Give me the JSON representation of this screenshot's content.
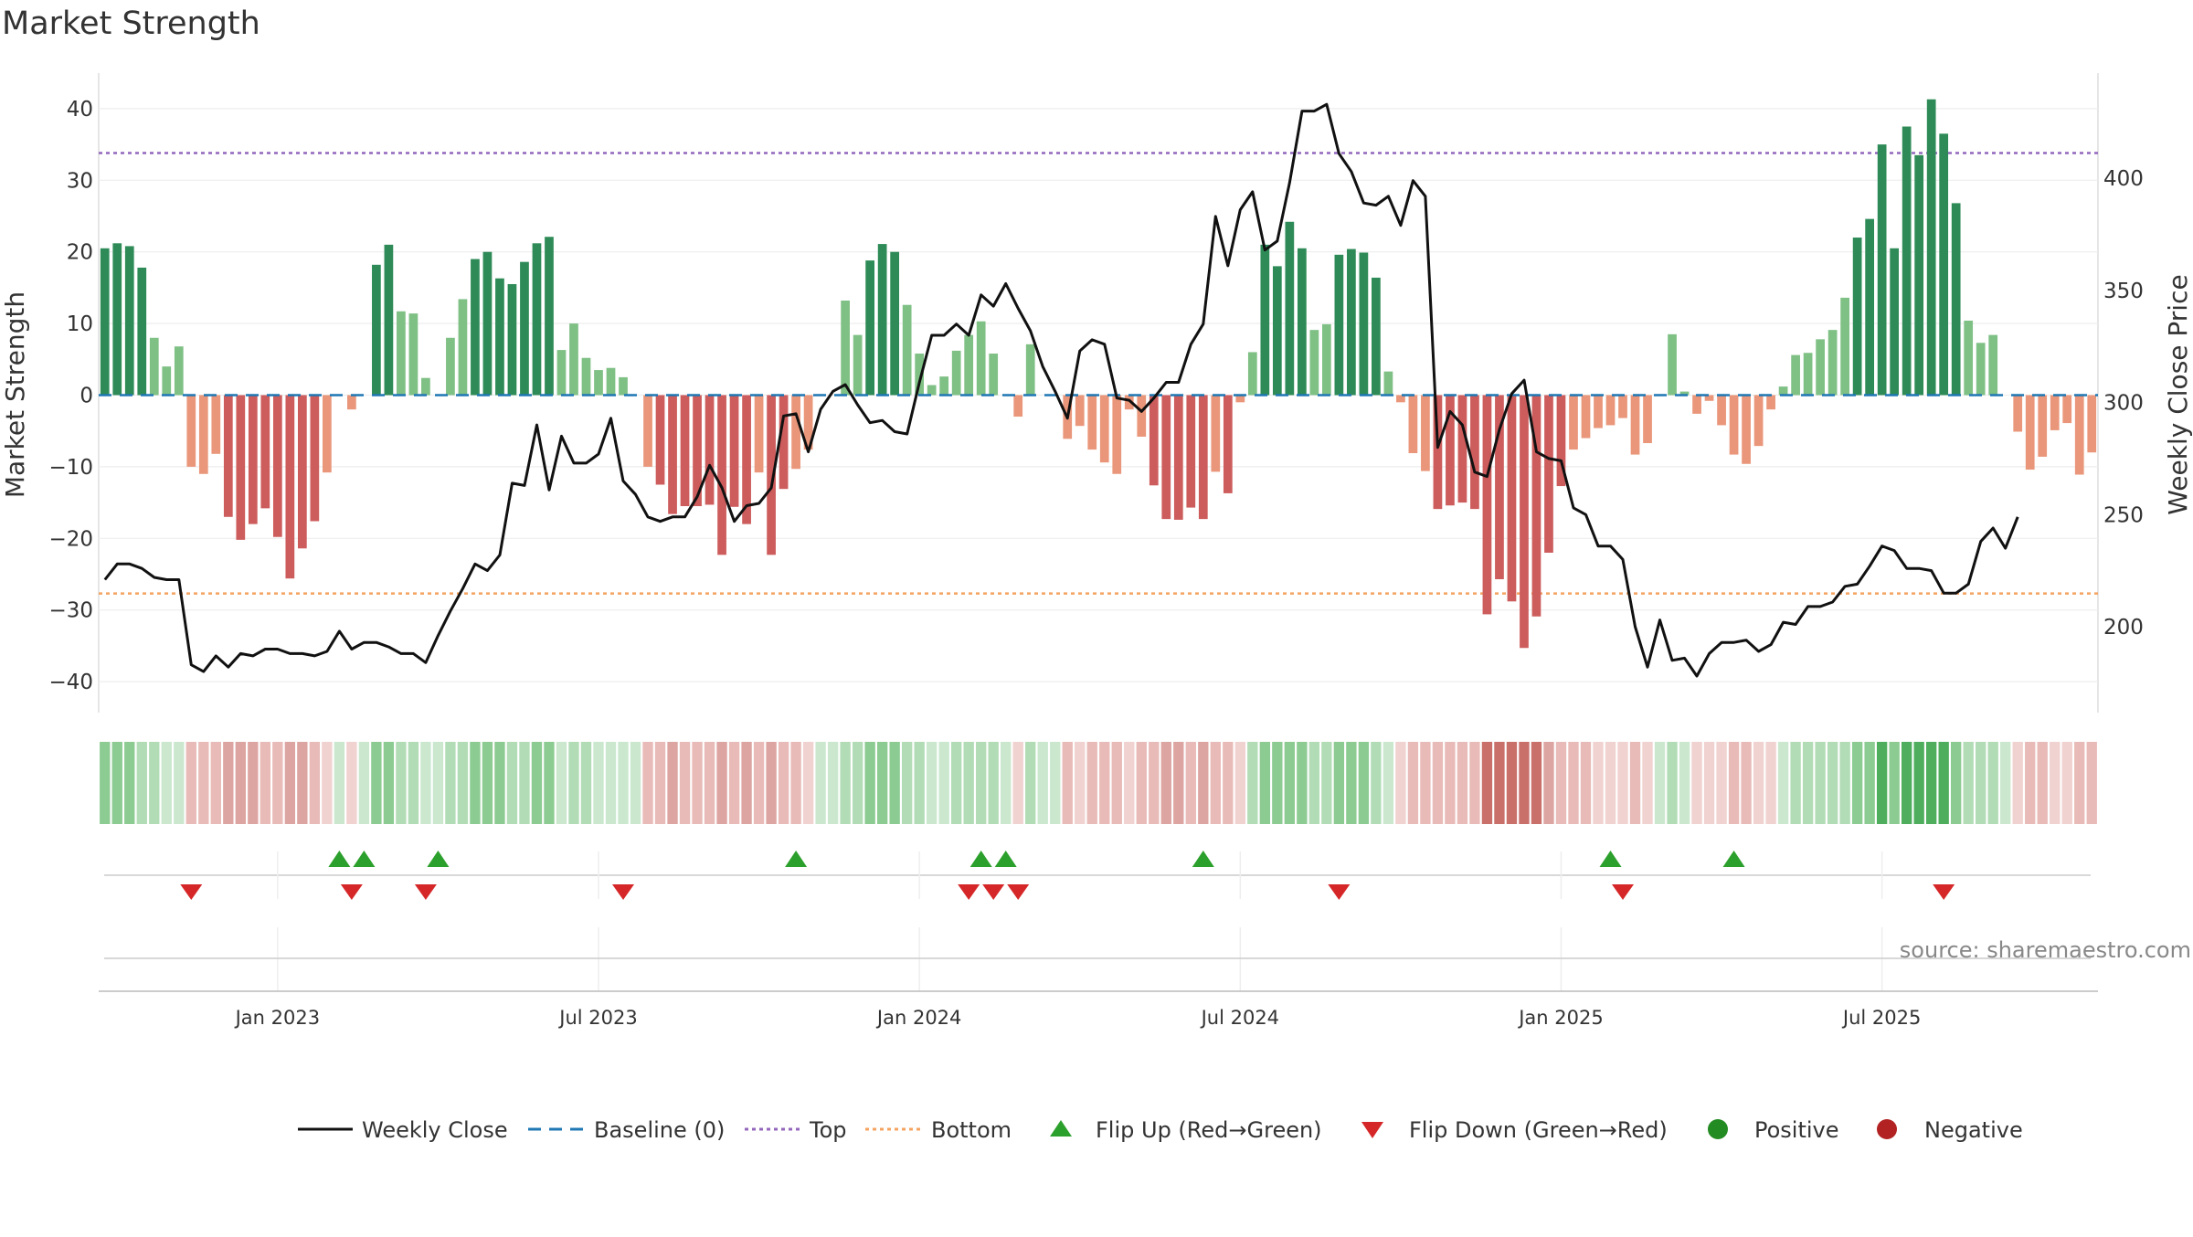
{
  "title": "Market Strength",
  "source": "source: sharemaestro.com",
  "colors": {
    "strong_green": "#2e8b57",
    "light_green": "#7fc085",
    "strong_red": "#cd5c5c",
    "light_red": "#e9967a",
    "line": "#111111",
    "baseline": "#1f77b4",
    "top": "#9467bd",
    "bottom": "#f4a460",
    "flip_up": "#2ca02c",
    "flip_down": "#d62728",
    "positive": "#228b22",
    "negative": "#b22222"
  },
  "chart_data": {
    "type": "bar",
    "ylabel": "Market Strength",
    "y2label": "Weekly Close Price",
    "ylim": [
      -44,
      44
    ],
    "y2lim": [
      164,
      440
    ],
    "yticks": [
      "40",
      "30",
      "20",
      "10",
      "0",
      "−10",
      "−20",
      "−30",
      "−40"
    ],
    "y2ticks": [
      "400",
      "350",
      "300",
      "250",
      "200"
    ],
    "xticks": [
      "Jan 2023",
      "Jul 2023",
      "Jan 2024",
      "Jul 2024",
      "Jan 2025",
      "Jul 2025"
    ],
    "xtick_weeks": [
      14,
      40,
      66,
      92,
      118,
      144
    ],
    "top_level": 33.8,
    "bottom_level": -27.7,
    "legend": [
      "Weekly Close",
      "Baseline (0)",
      "Top",
      "Bottom",
      "Flip Up (Red→Green)",
      "Flip Down (Green→Red)",
      "Positive",
      "Negative"
    ],
    "strength": [
      20.5,
      21.2,
      20.8,
      17.8,
      8.0,
      4.0,
      6.8,
      -10.0,
      -11.0,
      -8.2,
      -17.0,
      -20.2,
      -18.0,
      -15.8,
      -19.8,
      -25.6,
      -21.4,
      -17.6,
      -10.8,
      0.0,
      -2.0,
      0.0,
      18.2,
      21.0,
      11.7,
      11.4,
      2.4,
      0.0,
      8.0,
      13.4,
      19.0,
      20.0,
      16.3,
      15.5,
      18.6,
      21.2,
      22.1,
      6.3,
      10.0,
      5.2,
      3.5,
      3.8,
      2.5,
      0.0,
      -10.0,
      -12.5,
      -16.6,
      -15.5,
      -15.5,
      -15.3,
      -22.3,
      -15.6,
      -18.0,
      -10.8,
      -22.3,
      -13.1,
      -10.3,
      -7.6,
      0.0,
      0.0,
      13.2,
      8.4,
      18.8,
      21.1,
      20.0,
      12.6,
      5.8,
      1.4,
      2.6,
      6.2,
      8.4,
      10.3,
      5.8,
      0.0,
      -3.0,
      7.1,
      0.0,
      0.0,
      -6.1,
      -4.3,
      -7.6,
      -9.4,
      -11.0,
      -2.0,
      -5.8,
      -12.6,
      -17.3,
      -17.4,
      -15.7,
      -17.3,
      -10.7,
      -13.7,
      -1.0,
      6.0,
      21.0,
      18.0,
      24.2,
      20.5,
      9.1,
      9.9,
      19.6,
      20.4,
      19.9,
      16.4,
      3.3,
      -1.0,
      -8.1,
      -10.6,
      -15.9,
      -15.4,
      -15.0,
      -15.9,
      -30.6,
      -25.7,
      -28.8,
      -35.3,
      -30.9,
      -22.0,
      -12.7,
      -7.6,
      -6.0,
      -4.6,
      -4.2,
      -3.2,
      -8.3,
      -6.7,
      0.0,
      8.5,
      0.5,
      -2.6,
      -0.8,
      -4.2,
      -8.3,
      -9.6,
      -7.1,
      -2.0,
      1.2,
      5.6,
      5.9,
      7.8,
      9.1,
      13.6,
      22.0,
      24.6,
      35.0,
      20.5,
      37.5,
      33.5,
      41.3,
      36.5,
      26.8,
      10.4,
      7.3,
      8.4,
      0.0,
      -5.1,
      -10.4,
      -8.6,
      -4.9,
      -3.9,
      -11.1,
      -8.0
    ],
    "weekly_close": [
      221,
      228,
      228,
      226,
      222,
      221,
      221,
      183,
      180,
      187,
      182,
      188,
      187,
      190,
      190,
      188,
      188,
      187,
      189,
      198,
      190,
      193,
      193,
      191,
      188,
      188,
      184,
      196,
      207,
      217,
      228,
      225,
      232,
      264,
      263,
      290,
      261,
      285,
      273,
      273,
      277,
      293,
      265,
      259,
      249,
      247,
      249,
      249,
      258,
      272,
      262,
      247,
      254,
      255,
      262,
      294,
      295,
      278,
      297,
      305,
      308,
      299,
      291,
      292,
      287,
      286,
      309,
      330,
      330,
      335,
      330,
      348,
      343,
      353,
      342,
      332,
      316,
      305,
      293,
      323,
      328,
      326,
      302,
      301,
      296,
      302,
      309,
      309,
      326,
      335,
      383,
      361,
      386,
      394,
      368,
      372,
      398,
      430,
      430,
      433,
      411,
      403,
      389,
      388,
      392,
      379,
      399,
      392,
      280,
      296,
      290,
      269,
      267,
      288,
      304,
      310,
      278,
      275,
      274,
      253,
      250,
      236,
      236,
      230,
      200,
      182,
      203,
      185,
      186,
      178,
      188,
      193,
      193,
      194,
      189,
      192,
      202,
      201,
      209,
      209,
      211,
      218,
      219,
      227,
      236,
      234,
      226,
      226,
      225,
      215,
      215,
      219,
      238,
      244,
      235,
      249
    ],
    "heat_levels": [
      2,
      2,
      2,
      1,
      1,
      0,
      0,
      1,
      1,
      1,
      2,
      2,
      2,
      1,
      1,
      2,
      2,
      1,
      0,
      0,
      0,
      0,
      2,
      2,
      1,
      1,
      0,
      0,
      1,
      1,
      2,
      2,
      2,
      1,
      1,
      2,
      2,
      0,
      1,
      1,
      0,
      0,
      0,
      0,
      1,
      1,
      2,
      1,
      1,
      1,
      2,
      1,
      2,
      1,
      2,
      1,
      1,
      0,
      0,
      0,
      1,
      1,
      2,
      2,
      2,
      1,
      1,
      0,
      0,
      1,
      1,
      1,
      1,
      0,
      0,
      1,
      0,
      0,
      1,
      0,
      1,
      1,
      1,
      0,
      1,
      1,
      2,
      2,
      1,
      2,
      1,
      1,
      0,
      1,
      2,
      2,
      2,
      2,
      1,
      1,
      2,
      2,
      2,
      1,
      0,
      0,
      1,
      1,
      1,
      1,
      1,
      1,
      3,
      3,
      3,
      3,
      3,
      2,
      1,
      1,
      1,
      0,
      0,
      0,
      1,
      0,
      0,
      1,
      0,
      0,
      0,
      0,
      1,
      1,
      0,
      0,
      0,
      1,
      1,
      1,
      1,
      1,
      2,
      2,
      3,
      2,
      3,
      3,
      3,
      3,
      2,
      1,
      1,
      1,
      0,
      0,
      1,
      1,
      0,
      0,
      1,
      1
    ],
    "flip_up_weeks": [
      19,
      21,
      27,
      56,
      71,
      73,
      89,
      122,
      132
    ],
    "flip_down_weeks": [
      7,
      20,
      26,
      42,
      70,
      72,
      74,
      100,
      123,
      149
    ],
    "panel_dividers": [
      14,
      40,
      66,
      92,
      118,
      144
    ]
  }
}
